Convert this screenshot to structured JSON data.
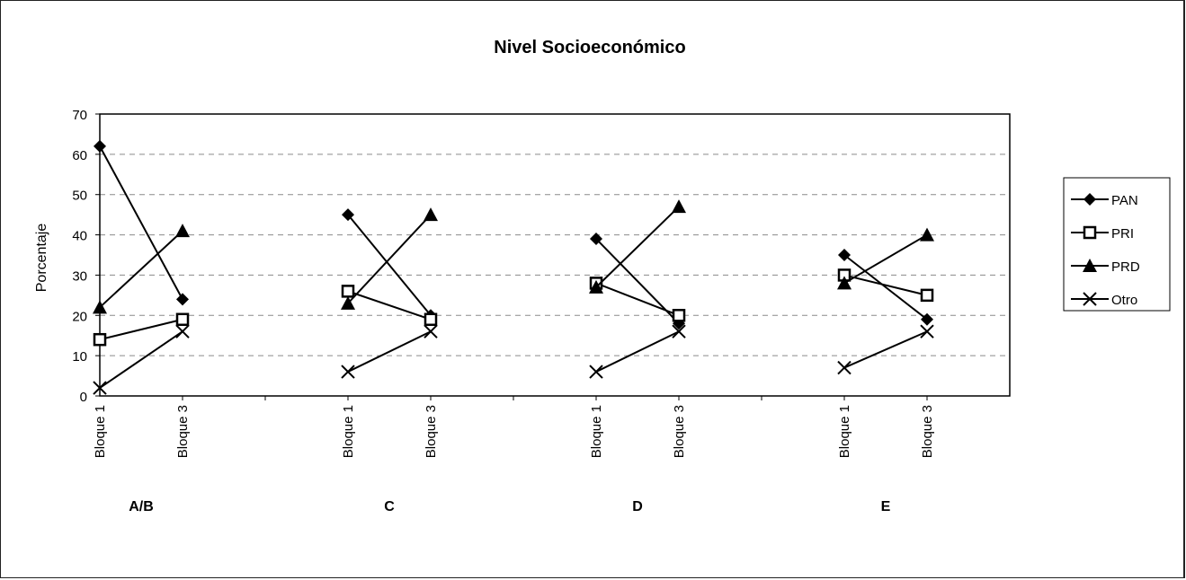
{
  "chart_data": {
    "type": "line",
    "title": "Nivel Socioeconómico",
    "xlabel": "",
    "ylabel": "Porcentaje",
    "ylim": [
      0,
      70
    ],
    "yticks": [
      0,
      10,
      20,
      30,
      40,
      50,
      60,
      70
    ],
    "grid": "horizontal dashed",
    "legend_position": "right",
    "groups": [
      {
        "label": "A/B",
        "categories": [
          "Bloque 1",
          "Bloque 3"
        ]
      },
      {
        "label": "C",
        "categories": [
          "Bloque 1",
          "Bloque 3"
        ]
      },
      {
        "label": "D",
        "categories": [
          "Bloque 1",
          "Bloque 3"
        ]
      },
      {
        "label": "E",
        "categories": [
          "Bloque 1",
          "Bloque 3"
        ]
      }
    ],
    "series": [
      {
        "name": "PAN",
        "marker": "diamond",
        "values": [
          [
            62,
            24
          ],
          [
            45,
            20
          ],
          [
            39,
            18
          ],
          [
            35,
            19
          ]
        ]
      },
      {
        "name": "PRI",
        "marker": "square",
        "values": [
          [
            14,
            19
          ],
          [
            26,
            19
          ],
          [
            28,
            20
          ],
          [
            30,
            25
          ]
        ]
      },
      {
        "name": "PRD",
        "marker": "triangle",
        "values": [
          [
            22,
            41
          ],
          [
            23,
            45
          ],
          [
            27,
            47
          ],
          [
            28,
            40
          ]
        ]
      },
      {
        "name": "Otro",
        "marker": "x",
        "values": [
          [
            2,
            16
          ],
          [
            6,
            16
          ],
          [
            6,
            16
          ],
          [
            7,
            16
          ]
        ]
      }
    ]
  }
}
